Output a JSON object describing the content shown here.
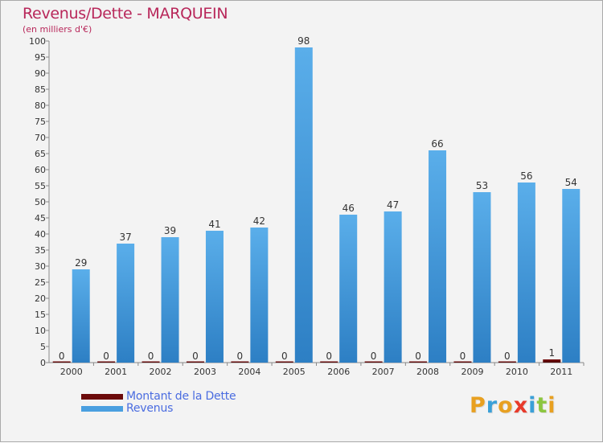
{
  "chart_data": {
    "type": "bar",
    "title": "Revenus/Dette - MARQUEIN",
    "subtitle": "(en milliers d'€)",
    "categories": [
      "2000",
      "2001",
      "2002",
      "2003",
      "2004",
      "2005",
      "2006",
      "2007",
      "2008",
      "2009",
      "2010",
      "2011"
    ],
    "series": [
      {
        "name": "Montant de la Dette",
        "color": "#6b0a0a",
        "values": [
          0,
          0,
          0,
          0,
          0,
          0,
          0,
          0,
          0,
          0,
          0,
          1
        ]
      },
      {
        "name": "Revenus",
        "color": "#4a9fe0",
        "values": [
          29,
          37,
          39,
          41,
          42,
          98,
          46,
          47,
          66,
          53,
          56,
          54
        ]
      }
    ],
    "ylim": [
      0,
      100
    ],
    "yticks": [
      0,
      5,
      10,
      15,
      20,
      25,
      30,
      35,
      40,
      45,
      50,
      55,
      60,
      65,
      70,
      75,
      80,
      85,
      90,
      95,
      100
    ],
    "grid": false,
    "legend": "bottom-left"
  },
  "branding": {
    "logo_letters": [
      {
        "char": "P",
        "color": "#e8a020"
      },
      {
        "char": "r",
        "color": "#3aa0d8"
      },
      {
        "char": "o",
        "color": "#e8a020"
      },
      {
        "char": "x",
        "color": "#e83a2a"
      },
      {
        "char": "i",
        "color": "#3aa0d8"
      },
      {
        "char": "t",
        "color": "#8cc63f"
      },
      {
        "char": "i",
        "color": "#e8a020"
      }
    ]
  }
}
